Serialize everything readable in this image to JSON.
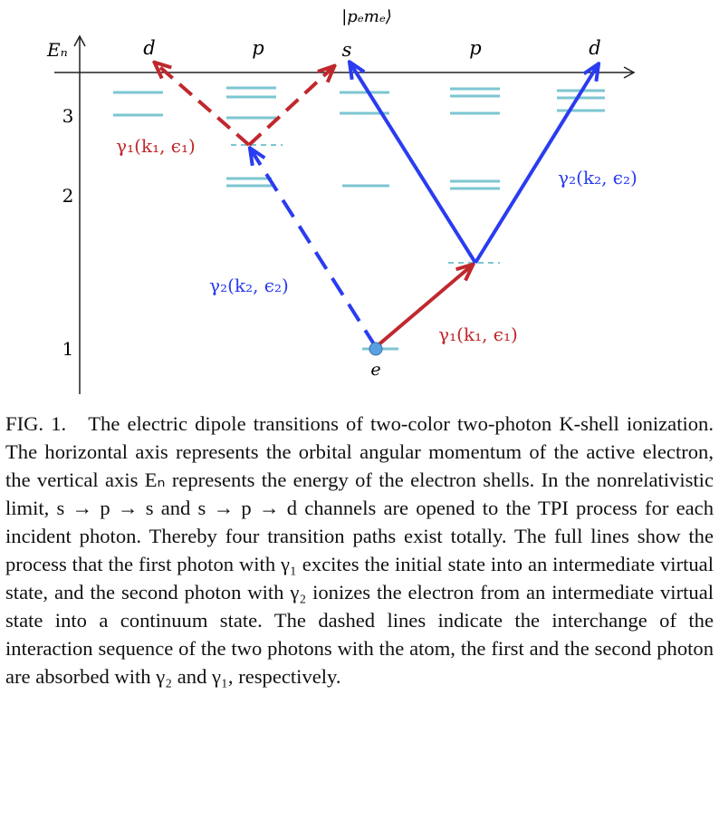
{
  "figure": {
    "energy_axis_label": "Eₙ",
    "state_label": "|pₑmₑ⟩",
    "orbital_labels": [
      "d",
      "p",
      "s",
      "p",
      "d"
    ],
    "shell_labels": [
      "3",
      "2",
      "1"
    ],
    "electron_label": "e",
    "photon_labels": [
      "γ₁(k₁, ϵ₁)",
      "γ₂(k₂, ϵ₂)",
      "γ₂(k₂, ϵ₂)",
      "γ₁(k₁, ϵ₁)"
    ]
  },
  "caption": {
    "label": "FIG. 1.",
    "text": "The electric dipole transitions of two-color two-photon K-shell ionization. The horizontal axis represents the orbital angular momentum of the active electron, the vertical axis Eₙ represents the energy of the electron shells. In the nonrelativistic limit, s → p → s and s → p → d channels are opened to the TPI process for each incident photon. Thereby four transition paths exist totally. The full lines show the process that the first photon with γ₁ excites the initial state into an intermediate virtual state, and the second photon with γ₂ ionizes the electron from an intermediate virtual state into a continuum state. The dashed lines indicate the interchange of the interaction sequence of the two photons with the atom, the first and the second photon are absorbed with γ₂ and γ₁, respectively."
  }
}
